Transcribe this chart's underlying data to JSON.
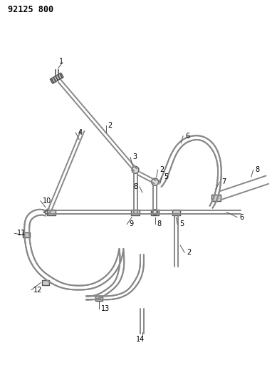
{
  "title": "92125 800",
  "bg_color": "#ffffff",
  "line_color": "#555555",
  "label_color": "#000000",
  "title_fontsize": 8.5,
  "label_fontsize": 7,
  "figsize": [
    3.89,
    5.33
  ],
  "dpi": 100,
  "tube_color": "#888888",
  "connector_color": "#aaaaaa",
  "connector_edge": "#555555"
}
